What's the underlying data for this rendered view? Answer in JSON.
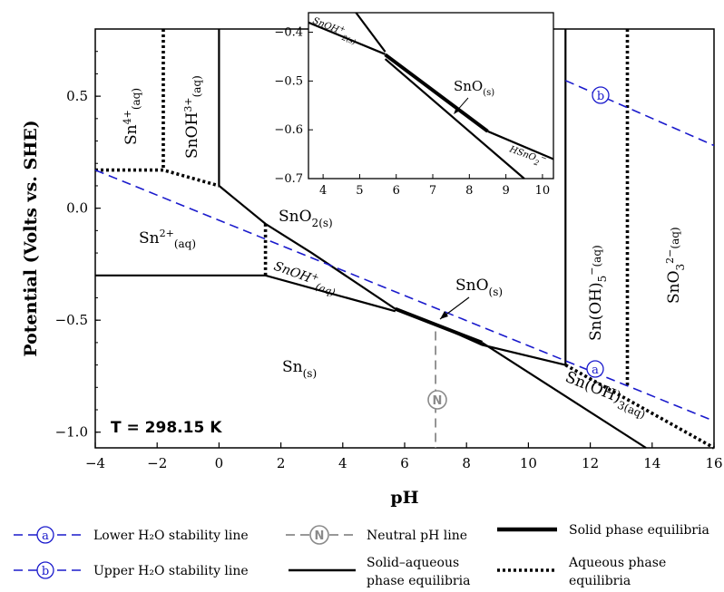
{
  "chart_data": {
    "type": "line",
    "title": "",
    "xlabel": "pH",
    "ylabel": "Potential (Volts vs. SHE)",
    "xlim": [
      -4,
      16
    ],
    "ylim": [
      -1.07,
      0.8
    ],
    "x_ticks": [
      "−4",
      "−2",
      "0",
      "2",
      "4",
      "6",
      "8",
      "10",
      "12",
      "14",
      "16"
    ],
    "y_ticks": [
      "0.5",
      "0.0",
      "−0.5",
      "−1.0"
    ],
    "temperature_label": "T = 298.15 K",
    "series": [
      {
        "style": "solid-aqueous",
        "points": [
          [
            0,
            0.8
          ],
          [
            0,
            0.1
          ]
        ]
      },
      {
        "style": "solid-aqueous",
        "points": [
          [
            0,
            0.1
          ],
          [
            1.5,
            -0.07
          ],
          [
            3.0,
            -0.2
          ],
          [
            5.7,
            -0.45
          ],
          [
            7.2,
            -0.53
          ],
          [
            8.5,
            -0.61
          ],
          [
            11.2,
            -0.7
          ]
        ]
      },
      {
        "style": "solid-aqueous",
        "points": [
          [
            -4,
            -0.3
          ],
          [
            1.5,
            -0.3
          ],
          [
            5.7,
            -0.46
          ]
        ]
      },
      {
        "style": "solid-aqueous",
        "points": [
          [
            8.5,
            -0.6
          ],
          [
            13.8,
            -1.07
          ]
        ]
      },
      {
        "style": "solid-aqueous",
        "points": [
          [
            11.2,
            0.8
          ],
          [
            11.2,
            -0.7
          ]
        ]
      },
      {
        "style": "solid-phase",
        "points": [
          [
            5.7,
            -0.45
          ],
          [
            8.5,
            -0.6
          ]
        ]
      },
      {
        "style": "aqueous",
        "points": [
          [
            -4,
            0.17
          ],
          [
            -1.8,
            0.17
          ],
          [
            0,
            0.1
          ]
        ]
      },
      {
        "style": "aqueous",
        "points": [
          [
            -1.8,
            0.8
          ],
          [
            -1.8,
            0.17
          ]
        ]
      },
      {
        "style": "aqueous",
        "points": [
          [
            1.5,
            -0.07
          ],
          [
            1.5,
            -0.3
          ]
        ]
      },
      {
        "style": "aqueous",
        "points": [
          [
            13.2,
            0.8
          ],
          [
            13.2,
            -0.8
          ]
        ]
      },
      {
        "style": "aqueous",
        "points": [
          [
            11.2,
            -0.7
          ],
          [
            16,
            -1.07
          ]
        ]
      },
      {
        "style": "lower-h2o",
        "points": [
          [
            -4,
            0.17
          ],
          [
            16,
            -0.95
          ]
        ]
      },
      {
        "style": "upper-h2o",
        "points": [
          [
            11.2,
            0.57
          ],
          [
            16,
            0.28
          ]
        ]
      },
      {
        "style": "neutral",
        "points": [
          [
            7,
            -0.55
          ],
          [
            7,
            -1.07
          ]
        ]
      }
    ],
    "inset": {
      "xlim": [
        3.6,
        10.3
      ],
      "ylim": [
        -0.7,
        -0.36
      ],
      "x_ticks": [
        "4",
        "5",
        "6",
        "7",
        "8",
        "9",
        "10"
      ],
      "y_ticks": [
        "−0.4",
        "−0.5",
        "−0.6",
        "−0.7"
      ],
      "series": [
        {
          "style": "solid-aqueous",
          "points": [
            [
              3.6,
              -0.38
            ],
            [
              5.7,
              -0.445
            ]
          ]
        },
        {
          "style": "solid-aqueous",
          "points": [
            [
              4.9,
              -0.36
            ],
            [
              5.7,
              -0.44
            ]
          ]
        },
        {
          "style": "solid-phase",
          "points": [
            [
              5.7,
              -0.446
            ],
            [
              8.5,
              -0.603
            ]
          ]
        },
        {
          "style": "solid-aqueous",
          "points": [
            [
              5.7,
              -0.455
            ],
            [
              9.5,
              -0.7
            ]
          ]
        },
        {
          "style": "solid-aqueous",
          "points": [
            [
              8.5,
              -0.603
            ],
            [
              10.3,
              -0.66
            ]
          ]
        }
      ]
    }
  },
  "labels": {
    "sn4": "Sn",
    "sn4_sup": "4+",
    "sn4_sub": "(aq)",
    "snoh3": "SnOH",
    "snoh3_sup": "3+",
    "snoh3_sub": "(aq)",
    "sno2": "SnO",
    "sno2_2": "2",
    "sno2_sub": "(s)",
    "sn2": "Sn",
    "sn2_sup": "2+",
    "sn2_sub": "(aq)",
    "snoh": "SnOH",
    "snoh_sup": "+",
    "snoh_sub": "(aq)",
    "sno": "SnO",
    "sno_sub": "(s)",
    "sn": "Sn",
    "sn_sub": "(s)",
    "snoh5": "Sn(OH)",
    "snoh5_sub": "5",
    "snoh5_sup": "−",
    "snoh5_aq": "(aq)",
    "sno3": "SnO",
    "sno3_sub": "3",
    "sno3_sup": "2−",
    "sno3_aq": "(aq)",
    "snoh3aq": "Sn(OH)",
    "snoh3aq_sub": "3(aq)",
    "inset_snoh": "SnOH",
    "inset_snoh_sup": "+",
    "inset_snoh_sub": "2(s)",
    "inset_sno": "SnO",
    "inset_sno_sub": "(s)",
    "inset_hsno": "HSnO",
    "inset_hsno_sub": "2",
    "inset_hsno_sup": "−",
    "marker_a": "a",
    "marker_b": "b",
    "marker_n": "N"
  },
  "legend": {
    "lower": "Lower H₂O stability line",
    "upper": "Upper H₂O stability line",
    "neutral": "Neutral pH line",
    "solid_aq_1": "Solid–aqueous",
    "solid_aq_2": "phase equilibria",
    "solid_phase": "Solid phase equilibria",
    "aqueous_1": "Aqueous phase",
    "aqueous_2": "equilibria"
  },
  "colors": {
    "water": "#1a1acc",
    "neutral": "#8a8a8a"
  }
}
